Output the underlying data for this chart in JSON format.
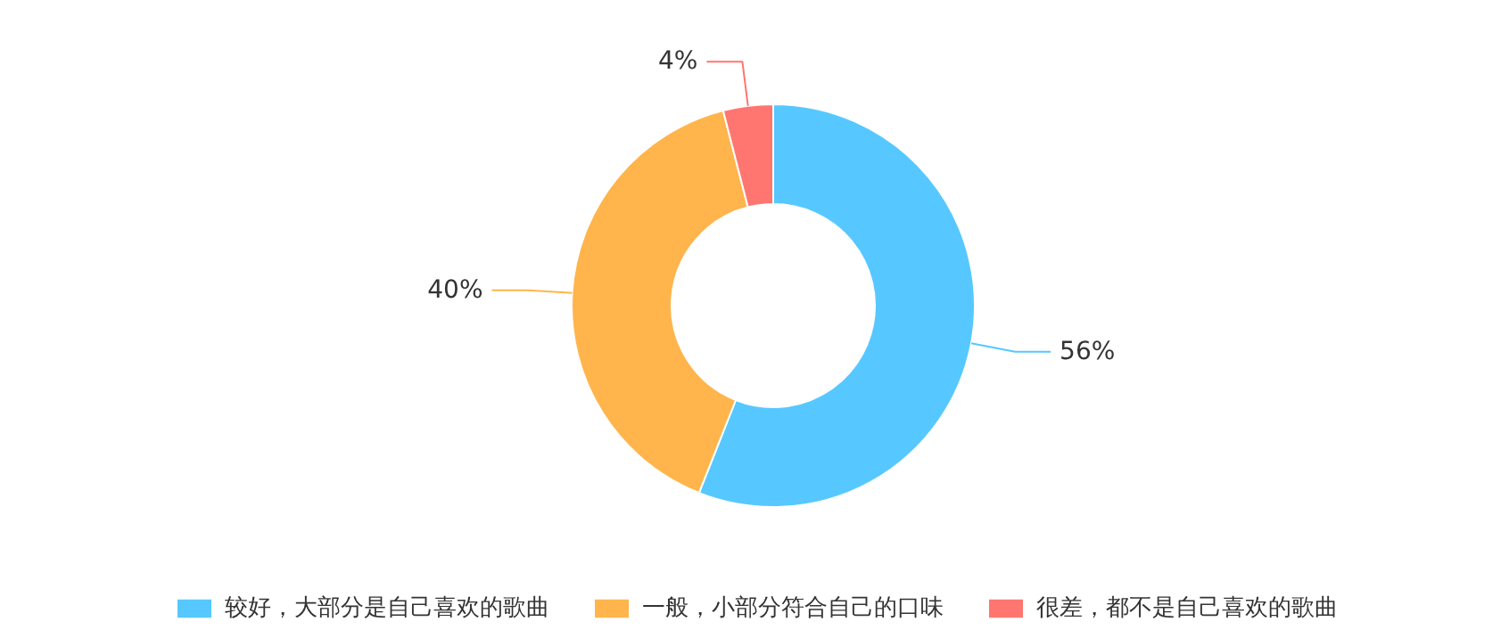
{
  "chart_data": {
    "type": "donut",
    "categories": [
      "较好，大部分是自己喜欢的歌曲",
      "一般，小部分符合自己的口味",
      "很差，都不是自己喜欢的歌曲"
    ],
    "values": [
      56,
      40,
      4
    ],
    "colors": [
      "#56c8ff",
      "#ffb54c",
      "#ff7670"
    ],
    "value_labels": [
      "56%",
      "40%",
      "4%"
    ],
    "legend": "bottom"
  }
}
